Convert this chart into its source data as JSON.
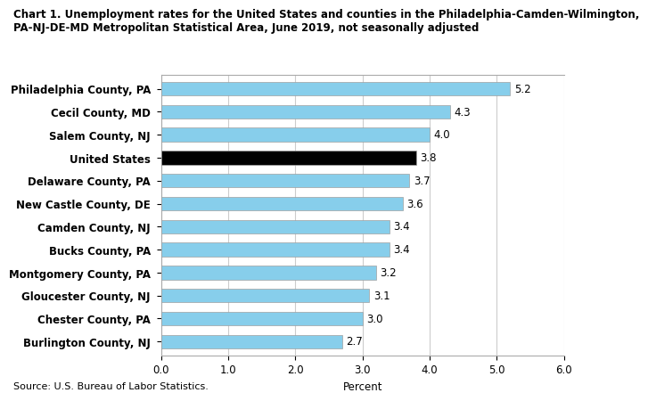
{
  "title_line1": "Chart 1. Unemployment rates for the United States and counties in the Philadelphia-Camden-Wilmington,",
  "title_line2": "PA-NJ-DE-MD Metropolitan Statistical Area, June 2019, not seasonally adjusted",
  "categories": [
    "Burlington County, NJ",
    "Chester County, PA",
    "Gloucester County, NJ",
    "Montgomery County, PA",
    "Bucks County, PA",
    "Camden County, NJ",
    "New Castle County, DE",
    "Delaware County, PA",
    "United States",
    "Salem County, NJ",
    "Cecil County, MD",
    "Philadelphia County, PA"
  ],
  "values": [
    2.7,
    3.0,
    3.1,
    3.2,
    3.4,
    3.4,
    3.6,
    3.7,
    3.8,
    4.0,
    4.3,
    5.2
  ],
  "bar_colors": [
    "#87CEEB",
    "#87CEEB",
    "#87CEEB",
    "#87CEEB",
    "#87CEEB",
    "#87CEEB",
    "#87CEEB",
    "#87CEEB",
    "#000000",
    "#87CEEB",
    "#87CEEB",
    "#87CEEB"
  ],
  "xlabel": "Percent",
  "xlim": [
    0,
    6.0
  ],
  "xticks": [
    0.0,
    1.0,
    2.0,
    3.0,
    4.0,
    5.0,
    6.0
  ],
  "xtick_labels": [
    "0.0",
    "1.0",
    "2.0",
    "3.0",
    "4.0",
    "5.0",
    "6.0"
  ],
  "source": "Source: U.S. Bureau of Labor Statistics.",
  "bar_height": 0.6,
  "title_fontsize": 8.5,
  "label_fontsize": 8.5,
  "tick_fontsize": 8.5,
  "value_fontsize": 8.5,
  "background_color": "#ffffff",
  "grid_color": "#cccccc",
  "bar_edge_color": "#a0a0a0"
}
